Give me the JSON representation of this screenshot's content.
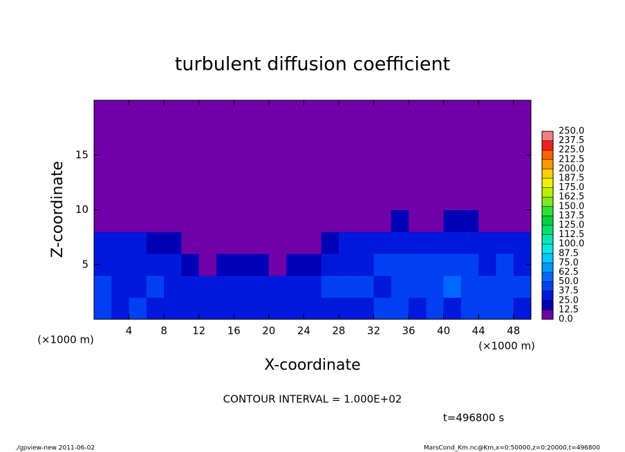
{
  "chart_data": {
    "type": "heatmap",
    "title": "turbulent diffusion coefficient",
    "x_label": "X-coordinate",
    "y_label": "Z-coordinate",
    "x_unit_label": "(×1000 m)",
    "y_unit_label": "(×1000 m)",
    "contour_interval_label": "CONTOUR INTERVAL = 1.000E+02",
    "time_label": "t=496800 s",
    "xlim": [
      0,
      50
    ],
    "ylim": [
      0,
      20
    ],
    "xticks": [
      4,
      8,
      12,
      16,
      20,
      24,
      28,
      32,
      36,
      40,
      44,
      48
    ],
    "yticks": [
      5,
      10,
      15
    ],
    "x": [
      1,
      3,
      5,
      7,
      9,
      11,
      13,
      15,
      17,
      19,
      21,
      23,
      25,
      27,
      29,
      31,
      33,
      35,
      37,
      39,
      41,
      43,
      45,
      47,
      49
    ],
    "y": [
      1,
      3,
      5,
      7,
      9,
      11,
      13,
      15,
      17,
      19
    ],
    "z": [
      [
        40,
        35,
        38,
        32,
        30,
        35,
        28,
        30,
        33,
        30,
        28,
        32,
        25,
        30,
        35,
        33,
        38,
        40,
        35,
        42,
        30,
        45,
        38,
        40,
        35
      ],
      [
        38,
        30,
        35,
        40,
        32,
        28,
        25,
        30,
        35,
        25,
        30,
        28,
        35,
        40,
        38,
        42,
        35,
        45,
        38,
        40,
        50,
        45,
        42,
        38,
        40
      ],
      [
        30,
        35,
        32,
        28,
        25,
        20,
        12,
        18,
        20,
        15,
        12,
        15,
        20,
        35,
        30,
        32,
        38,
        42,
        45,
        38,
        40,
        42,
        35,
        38,
        30
      ],
      [
        25,
        28,
        30,
        22,
        18,
        0,
        0,
        0,
        0,
        0,
        0,
        0,
        0,
        20,
        25,
        28,
        30,
        32,
        35,
        30,
        32,
        35,
        30,
        28,
        30
      ],
      [
        0,
        0,
        0,
        0,
        0,
        0,
        0,
        0,
        0,
        0,
        0,
        0,
        0,
        0,
        0,
        0,
        10,
        15,
        10,
        12,
        15,
        18,
        12,
        0,
        0
      ],
      [
        0,
        0,
        0,
        0,
        0,
        0,
        0,
        0,
        0,
        0,
        0,
        0,
        0,
        0,
        0,
        0,
        0,
        0,
        0,
        0,
        0,
        0,
        0,
        0,
        0
      ],
      [
        0,
        0,
        0,
        0,
        0,
        0,
        0,
        0,
        0,
        0,
        0,
        0,
        0,
        0,
        0,
        0,
        0,
        0,
        0,
        0,
        0,
        0,
        0,
        0,
        0
      ],
      [
        0,
        0,
        0,
        0,
        0,
        0,
        0,
        0,
        0,
        0,
        0,
        0,
        0,
        0,
        0,
        0,
        0,
        0,
        0,
        0,
        0,
        0,
        0,
        0,
        0
      ],
      [
        0,
        0,
        0,
        0,
        0,
        0,
        0,
        0,
        0,
        0,
        0,
        0,
        0,
        0,
        0,
        0,
        0,
        0,
        0,
        0,
        0,
        0,
        0,
        0,
        0
      ],
      [
        0,
        0,
        0,
        0,
        0,
        0,
        0,
        0,
        0,
        0,
        0,
        0,
        0,
        0,
        0,
        0,
        0,
        0,
        0,
        0,
        0,
        0,
        0,
        0,
        0
      ]
    ],
    "levels": [
      {
        "value": 0,
        "label": "0.0"
      },
      12.5,
      {
        "value": 25,
        "label": "25.0"
      },
      37.5,
      {
        "value": 50,
        "label": "50.0"
      },
      62.5,
      {
        "value": 75,
        "label": "75.0"
      },
      87.5,
      {
        "value": 100,
        "label": "100.0"
      },
      112.5,
      {
        "value": 125,
        "label": "125.0"
      },
      137.5,
      {
        "value": 150,
        "label": "150.0"
      },
      162.5,
      {
        "value": 175,
        "label": "175.0"
      },
      187.5,
      {
        "value": 200,
        "label": "200.0"
      },
      212.5,
      {
        "value": 225,
        "label": "225.0"
      },
      237.5,
      {
        "value": 250,
        "label": "250.0"
      }
    ],
    "colors": [
      "#7000a8",
      "#0000b4",
      "#0018dc",
      "#0040f0",
      "#0068ff",
      "#0098ff",
      "#00c8f8",
      "#00e8e0",
      "#00e8b0",
      "#00e070",
      "#00d040",
      "#30e030",
      "#80e820",
      "#b8f000",
      "#f0f000",
      "#ffd000",
      "#ff9800",
      "#ff6000",
      "#f02020",
      "#f08080"
    ]
  },
  "footer": {
    "left": "./gpview-new  2011-06-02",
    "right": "MarsCond_Km.nc@Km,x=0:50000,z=0:20000,t=496800"
  }
}
